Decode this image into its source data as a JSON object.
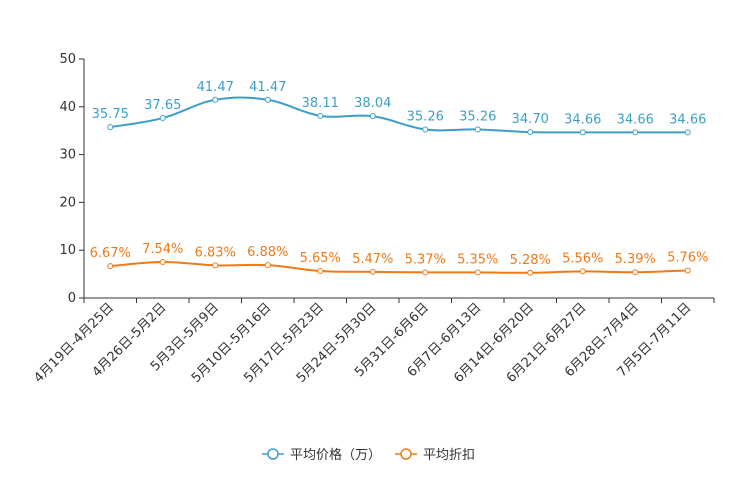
{
  "chart_data": {
    "type": "line",
    "title": "",
    "xlabel": "",
    "ylabel": "",
    "ylim": [
      0,
      50
    ],
    "yticks": [
      0,
      10,
      20,
      30,
      40,
      50
    ],
    "grid": false,
    "legend_position": "bottom-center",
    "categories": [
      "4月19日-4月25日",
      "4月26日-5月2日",
      "5月3日-5月9日",
      "5月10日-5月16日",
      "5月17日-5月23日",
      "5月24日-5月30日",
      "5月31日-6月6日",
      "6月7日-6月13日",
      "6月14日-6月20日",
      "6月21日-6月27日",
      "6月28日-7月4日",
      "7月5日-7月11日"
    ],
    "series": [
      {
        "name": "平均价格（万）",
        "color": "#3d9fc9",
        "values": [
          35.75,
          37.65,
          41.47,
          41.47,
          38.11,
          38.04,
          35.26,
          35.26,
          34.7,
          34.66,
          34.66,
          34.66
        ],
        "labels": [
          "35.75",
          "37.65",
          "41.47",
          "41.47",
          "38.11",
          "38.04",
          "35.26",
          "35.26",
          "34.70",
          "34.66",
          "34.66",
          "34.66"
        ]
      },
      {
        "name": "平均折扣",
        "color": "#f07a17",
        "values": [
          6.67,
          7.54,
          6.83,
          6.88,
          5.65,
          5.47,
          5.37,
          5.35,
          5.28,
          5.56,
          5.39,
          5.76
        ],
        "labels": [
          "6.67%",
          "7.54%",
          "6.83%",
          "6.88%",
          "5.65%",
          "5.47%",
          "5.37%",
          "5.35%",
          "5.28%",
          "5.56%",
          "5.39%",
          "5.76%"
        ]
      }
    ]
  }
}
